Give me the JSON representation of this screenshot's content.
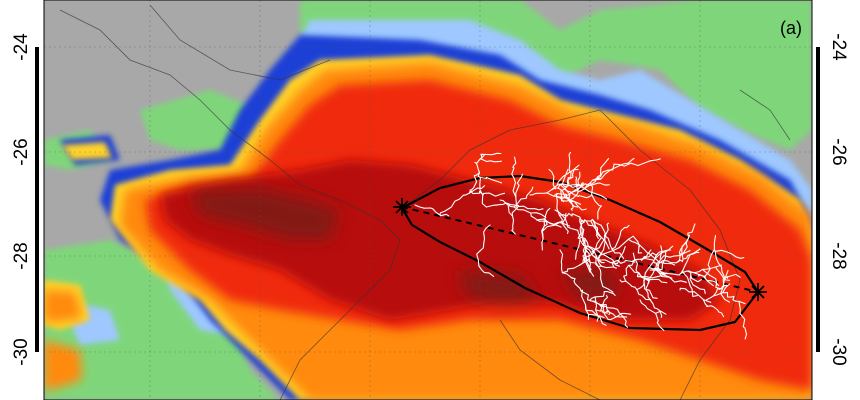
{
  "panel_label": "(a)",
  "latitude_ticks": [
    "-24",
    "-26",
    "-28",
    "-30"
  ],
  "colors": {
    "cloud_free_gray": "#a8a8a8",
    "low_cloud_green": "#7fd67a",
    "mid_cloud_lightblue": "#9ec8ff",
    "cold_cloud_blue": "#1f3fd6",
    "yellow": "#ffd22a",
    "orange": "#ff8a10",
    "red": "#f02a10",
    "dark_red": "#b8100c",
    "darkest": "#7a1a12",
    "flash_channels": "#ffffff",
    "flash_extent_outline": "#000000"
  },
  "flash": {
    "start_marker": "star",
    "end_marker": "star",
    "connecting_line": "dashed"
  }
}
